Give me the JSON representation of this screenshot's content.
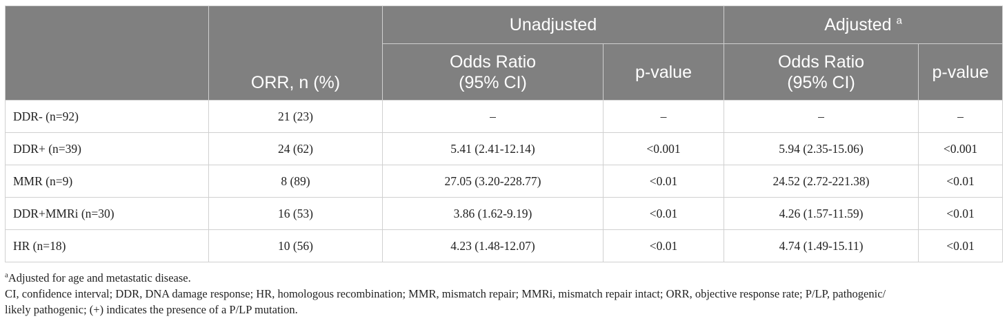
{
  "table": {
    "group_unadjusted": "Unadjusted",
    "group_adjusted": "Adjusted",
    "group_adjusted_mark": "a",
    "col_orr": "ORR, n (%)",
    "col_or_line1": "Odds Ratio",
    "col_or_line2": "(95% CI)",
    "col_p": "p-value",
    "rows": [
      {
        "label": "DDR- (n=92)",
        "orr": "21 (23)",
        "u_or": "–",
        "u_p": "–",
        "a_or": "–",
        "a_p": "–"
      },
      {
        "label": "DDR+ (n=39)",
        "orr": "24 (62)",
        "u_or": "5.41 (2.41-12.14)",
        "u_p": "<0.001",
        "a_or": "5.94 (2.35-15.06)",
        "a_p": "<0.001"
      },
      {
        "label": "MMR (n=9)",
        "orr": "8 (89)",
        "u_or": "27.05 (3.20-228.77)",
        "u_p": "<0.01",
        "a_or": "24.52 (2.72-221.38)",
        "a_p": "<0.01"
      },
      {
        "label": "DDR+MMRi (n=30)",
        "orr": "16 (53)",
        "u_or": "3.86 (1.62-9.19)",
        "u_p": "<0.01",
        "a_or": "4.26 (1.57-11.59)",
        "a_p": "<0.01"
      },
      {
        "label": "HR (n=18)",
        "orr": "10 (56)",
        "u_or": "4.23 (1.48-12.07)",
        "u_p": "<0.01",
        "a_or": "4.74 (1.49-15.11)",
        "a_p": "<0.01"
      }
    ]
  },
  "footnotes": {
    "a_mark": "a",
    "a_text": "Adjusted for age and metastatic disease.",
    "abbrev_line1": "CI, confidence interval; DDR, DNA damage response; HR, homologous recombination; MMR, mismatch repair; MMRi, mismatch repair intact; ORR, objective response rate; P/LP, pathogenic/",
    "abbrev_line2": "likely pathogenic; (+) indicates the presence of a P/LP mutation."
  }
}
